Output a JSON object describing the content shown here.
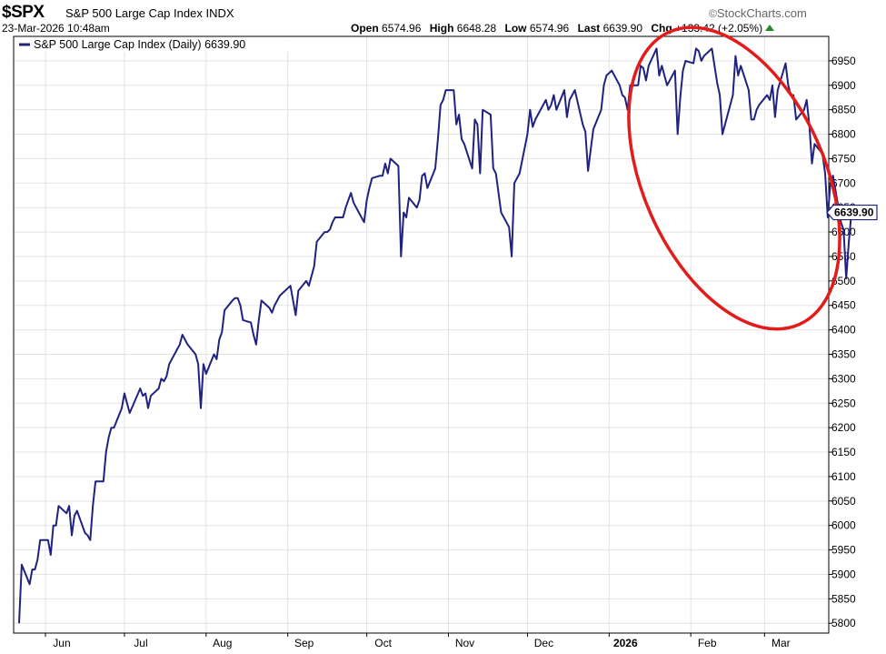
{
  "header": {
    "symbol": "$SPX",
    "name": "S&P 500 Large Cap Index",
    "exchange": "INDX",
    "timestamp": "23-Mar-2026 10:48am",
    "brand": "StockCharts.com",
    "brand_symbol": "©",
    "open_label": "Open",
    "open_value": "6574.96",
    "high_label": "High",
    "high_value": "6648.28",
    "low_label": "Low",
    "low_value": "6574.96",
    "last_label": "Last",
    "last_value": "6639.90",
    "chg_label": "Chg",
    "chg_value": "+133.42 (+2.05%)"
  },
  "colors": {
    "line": "#1f237f",
    "annotation": "#e31b1b",
    "grid": "#e3e3e3",
    "up": "#2a8a2a"
  },
  "chart_data": {
    "type": "line",
    "title": "",
    "xlabel": "",
    "ylabel": "",
    "legend": {
      "text": "S&P 500 Large Cap Index (Daily) 6639.90",
      "placement": "top-left"
    },
    "last_label": "6639.90",
    "ylim": [
      5780,
      7000
    ],
    "yticks": [
      5800,
      5850,
      5900,
      5950,
      6000,
      6050,
      6100,
      6150,
      6200,
      6250,
      6300,
      6350,
      6400,
      6450,
      6500,
      6550,
      6600,
      6650,
      6700,
      6750,
      6800,
      6850,
      6900,
      6950
    ],
    "grid": true,
    "x_start": "2025-05-22",
    "x_end": "2026-03-24",
    "xticks": [
      {
        "label": "Jun",
        "date": "2025-06-01"
      },
      {
        "label": "Jul",
        "date": "2025-07-01"
      },
      {
        "label": "Aug",
        "date": "2025-08-01"
      },
      {
        "label": "Sep",
        "date": "2025-09-01"
      },
      {
        "label": "Oct",
        "date": "2025-10-01"
      },
      {
        "label": "Nov",
        "date": "2025-11-01"
      },
      {
        "label": "Dec",
        "date": "2025-12-01"
      },
      {
        "label": "2026",
        "date": "2026-01-01",
        "bold": true
      },
      {
        "label": "Feb",
        "date": "2026-02-01"
      },
      {
        "label": "Mar",
        "date": "2026-03-01"
      }
    ],
    "annotation": {
      "shape": "ellipse",
      "date_range": [
        "2026-01-14",
        "2026-03-24"
      ],
      "value_range": [
        6420,
        7000
      ]
    },
    "series": [
      {
        "points": [
          [
            "2025-05-22",
            5800
          ],
          [
            "2025-05-23",
            5920
          ],
          [
            "2025-05-26",
            5880
          ],
          [
            "2025-05-27",
            5910
          ],
          [
            "2025-05-28",
            5910
          ],
          [
            "2025-05-29",
            5930
          ],
          [
            "2025-05-30",
            5970
          ],
          [
            "2025-06-02",
            5970
          ],
          [
            "2025-06-03",
            5940
          ],
          [
            "2025-06-04",
            6000
          ],
          [
            "2025-06-05",
            6000
          ],
          [
            "2025-06-06",
            6040
          ],
          [
            "2025-06-09",
            6025
          ],
          [
            "2025-06-10",
            6040
          ],
          [
            "2025-06-11",
            5980
          ],
          [
            "2025-06-12",
            6020
          ],
          [
            "2025-06-13",
            6030
          ],
          [
            "2025-06-16",
            5985
          ],
          [
            "2025-06-17",
            5980
          ],
          [
            "2025-06-18",
            5970
          ],
          [
            "2025-06-19",
            6040
          ],
          [
            "2025-06-20",
            6090
          ],
          [
            "2025-06-23",
            6090
          ],
          [
            "2025-06-24",
            6150
          ],
          [
            "2025-06-25",
            6180
          ],
          [
            "2025-06-26",
            6200
          ],
          [
            "2025-06-27",
            6200
          ],
          [
            "2025-06-30",
            6240
          ],
          [
            "2025-07-01",
            6270
          ],
          [
            "2025-07-02",
            6250
          ],
          [
            "2025-07-03",
            6230
          ],
          [
            "2025-07-07",
            6280
          ],
          [
            "2025-07-08",
            6265
          ],
          [
            "2025-07-09",
            6270
          ],
          [
            "2025-07-10",
            6240
          ],
          [
            "2025-07-11",
            6265
          ],
          [
            "2025-07-14",
            6280
          ],
          [
            "2025-07-15",
            6300
          ],
          [
            "2025-07-16",
            6295
          ],
          [
            "2025-07-17",
            6305
          ],
          [
            "2025-07-18",
            6330
          ],
          [
            "2025-07-21",
            6360
          ],
          [
            "2025-07-22",
            6370
          ],
          [
            "2025-07-23",
            6390
          ],
          [
            "2025-07-24",
            6380
          ],
          [
            "2025-07-25",
            6370
          ],
          [
            "2025-07-28",
            6350
          ],
          [
            "2025-07-29",
            6330
          ],
          [
            "2025-07-30",
            6240
          ],
          [
            "2025-07-31",
            6330
          ],
          [
            "2025-08-01",
            6310
          ],
          [
            "2025-08-04",
            6350
          ],
          [
            "2025-08-05",
            6340
          ],
          [
            "2025-08-06",
            6380
          ],
          [
            "2025-08-07",
            6395
          ],
          [
            "2025-08-08",
            6440
          ],
          [
            "2025-08-11",
            6460
          ],
          [
            "2025-08-12",
            6465
          ],
          [
            "2025-08-13",
            6465
          ],
          [
            "2025-08-14",
            6450
          ],
          [
            "2025-08-15",
            6420
          ],
          [
            "2025-08-18",
            6415
          ],
          [
            "2025-08-19",
            6390
          ],
          [
            "2025-08-20",
            6370
          ],
          [
            "2025-08-21",
            6420
          ],
          [
            "2025-08-22",
            6460
          ],
          [
            "2025-08-25",
            6445
          ],
          [
            "2025-08-26",
            6435
          ],
          [
            "2025-08-27",
            6450
          ],
          [
            "2025-08-28",
            6460
          ],
          [
            "2025-08-29",
            6470
          ],
          [
            "2025-09-02",
            6490
          ],
          [
            "2025-09-03",
            6460
          ],
          [
            "2025-09-04",
            6430
          ],
          [
            "2025-09-05",
            6480
          ],
          [
            "2025-09-08",
            6500
          ],
          [
            "2025-09-09",
            6490
          ],
          [
            "2025-09-10",
            6510
          ],
          [
            "2025-09-11",
            6530
          ],
          [
            "2025-09-12",
            6580
          ],
          [
            "2025-09-15",
            6600
          ],
          [
            "2025-09-16",
            6600
          ],
          [
            "2025-09-17",
            6605
          ],
          [
            "2025-09-18",
            6620
          ],
          [
            "2025-09-19",
            6630
          ],
          [
            "2025-09-22",
            6630
          ],
          [
            "2025-09-23",
            6650
          ],
          [
            "2025-09-24",
            6665
          ],
          [
            "2025-09-25",
            6680
          ],
          [
            "2025-09-26",
            6660
          ],
          [
            "2025-09-29",
            6630
          ],
          [
            "2025-09-30",
            6620
          ],
          [
            "2025-10-01",
            6665
          ],
          [
            "2025-10-02",
            6690
          ],
          [
            "2025-10-03",
            6710
          ],
          [
            "2025-10-06",
            6715
          ],
          [
            "2025-10-07",
            6715
          ],
          [
            "2025-10-08",
            6740
          ],
          [
            "2025-10-09",
            6720
          ],
          [
            "2025-10-10",
            6750
          ],
          [
            "2025-10-13",
            6735
          ],
          [
            "2025-10-14",
            6550
          ],
          [
            "2025-10-15",
            6640
          ],
          [
            "2025-10-16",
            6630
          ],
          [
            "2025-10-17",
            6670
          ],
          [
            "2025-10-20",
            6650
          ],
          [
            "2025-10-21",
            6665
          ],
          [
            "2025-10-22",
            6715
          ],
          [
            "2025-10-23",
            6720
          ],
          [
            "2025-10-24",
            6690
          ],
          [
            "2025-10-27",
            6730
          ],
          [
            "2025-10-28",
            6790
          ],
          [
            "2025-10-29",
            6860
          ],
          [
            "2025-10-30",
            6870
          ],
          [
            "2025-10-31",
            6890
          ],
          [
            "2025-11-03",
            6890
          ],
          [
            "2025-11-04",
            6820
          ],
          [
            "2025-11-05",
            6840
          ],
          [
            "2025-11-06",
            6790
          ],
          [
            "2025-11-07",
            6780
          ],
          [
            "2025-11-10",
            6730
          ],
          [
            "2025-11-11",
            6830
          ],
          [
            "2025-11-12",
            6820
          ],
          [
            "2025-11-13",
            6720
          ],
          [
            "2025-11-14",
            6850
          ],
          [
            "2025-11-17",
            6840
          ],
          [
            "2025-11-18",
            6730
          ],
          [
            "2025-11-19",
            6720
          ],
          [
            "2025-11-20",
            6680
          ],
          [
            "2025-11-21",
            6640
          ],
          [
            "2025-11-24",
            6610
          ],
          [
            "2025-11-25",
            6550
          ],
          [
            "2025-11-26",
            6700
          ],
          [
            "2025-11-28",
            6720
          ],
          [
            "2025-12-01",
            6800
          ],
          [
            "2025-12-02",
            6850
          ],
          [
            "2025-12-03",
            6815
          ],
          [
            "2025-12-04",
            6830
          ],
          [
            "2025-12-05",
            6840
          ],
          [
            "2025-12-08",
            6870
          ],
          [
            "2025-12-09",
            6850
          ],
          [
            "2025-12-10",
            6860
          ],
          [
            "2025-12-11",
            6880
          ],
          [
            "2025-12-12",
            6850
          ],
          [
            "2025-12-15",
            6890
          ],
          [
            "2025-12-16",
            6835
          ],
          [
            "2025-12-17",
            6870
          ],
          [
            "2025-12-18",
            6880
          ],
          [
            "2025-12-19",
            6890
          ],
          [
            "2025-12-22",
            6820
          ],
          [
            "2025-12-23",
            6805
          ],
          [
            "2025-12-24",
            6725
          ],
          [
            "2025-12-26",
            6810
          ],
          [
            "2025-12-29",
            6850
          ],
          [
            "2025-12-30",
            6900
          ],
          [
            "2025-12-31",
            6920
          ],
          [
            "2026-01-02",
            6930
          ],
          [
            "2026-01-05",
            6900
          ],
          [
            "2026-01-06",
            6880
          ],
          [
            "2026-01-07",
            6875
          ],
          [
            "2026-01-08",
            6850
          ],
          [
            "2026-01-09",
            6900
          ],
          [
            "2026-01-12",
            6900
          ],
          [
            "2026-01-13",
            6940
          ],
          [
            "2026-01-14",
            6935
          ],
          [
            "2026-01-15",
            6910
          ],
          [
            "2026-01-16",
            6940
          ],
          [
            "2026-01-19",
            6975
          ],
          [
            "2026-01-20",
            6920
          ],
          [
            "2026-01-21",
            6940
          ],
          [
            "2026-01-22",
            6920
          ],
          [
            "2026-01-23",
            6900
          ],
          [
            "2026-01-26",
            6930
          ],
          [
            "2026-01-27",
            6800
          ],
          [
            "2026-01-28",
            6875
          ],
          [
            "2026-01-29",
            6930
          ],
          [
            "2026-01-30",
            6950
          ],
          [
            "2026-02-02",
            6945
          ],
          [
            "2026-02-03",
            6975
          ],
          [
            "2026-02-04",
            6970
          ],
          [
            "2026-02-05",
            6950
          ],
          [
            "2026-02-06",
            6960
          ],
          [
            "2026-02-09",
            6975
          ],
          [
            "2026-02-10",
            6940
          ],
          [
            "2026-02-11",
            6905
          ],
          [
            "2026-02-12",
            6880
          ],
          [
            "2026-02-13",
            6800
          ],
          [
            "2026-02-17",
            6880
          ],
          [
            "2026-02-18",
            6960
          ],
          [
            "2026-02-19",
            6920
          ],
          [
            "2026-02-20",
            6940
          ],
          [
            "2026-02-23",
            6890
          ],
          [
            "2026-02-24",
            6830
          ],
          [
            "2026-02-25",
            6830
          ],
          [
            "2026-02-26",
            6850
          ],
          [
            "2026-02-27",
            6860
          ],
          [
            "2026-03-02",
            6880
          ],
          [
            "2026-03-03",
            6870
          ],
          [
            "2026-03-04",
            6900
          ],
          [
            "2026-03-05",
            6835
          ],
          [
            "2026-03-06",
            6890
          ],
          [
            "2026-03-09",
            6945
          ],
          [
            "2026-03-10",
            6900
          ],
          [
            "2026-03-11",
            6880
          ],
          [
            "2026-03-12",
            6880
          ],
          [
            "2026-03-13",
            6830
          ],
          [
            "2026-03-16",
            6850
          ],
          [
            "2026-03-17",
            6870
          ],
          [
            "2026-03-18",
            6820
          ],
          [
            "2026-03-19",
            6740
          ],
          [
            "2026-03-20",
            6780
          ],
          [
            "2026-03-23",
            6760
          ],
          [
            "2026-03-24",
            6720
          ],
          [
            "2026-03-25",
            6630
          ],
          [
            "2026-03-26",
            6700
          ],
          [
            "2026-03-27",
            6715
          ],
          [
            "2026-03-30",
            6620
          ],
          [
            "2026-03-31",
            6605
          ],
          [
            "2026-04-01",
            6505
          ],
          [
            "2026-04-02",
            6580
          ],
          [
            "2026-04-03",
            6640
          ]
        ]
      }
    ]
  }
}
